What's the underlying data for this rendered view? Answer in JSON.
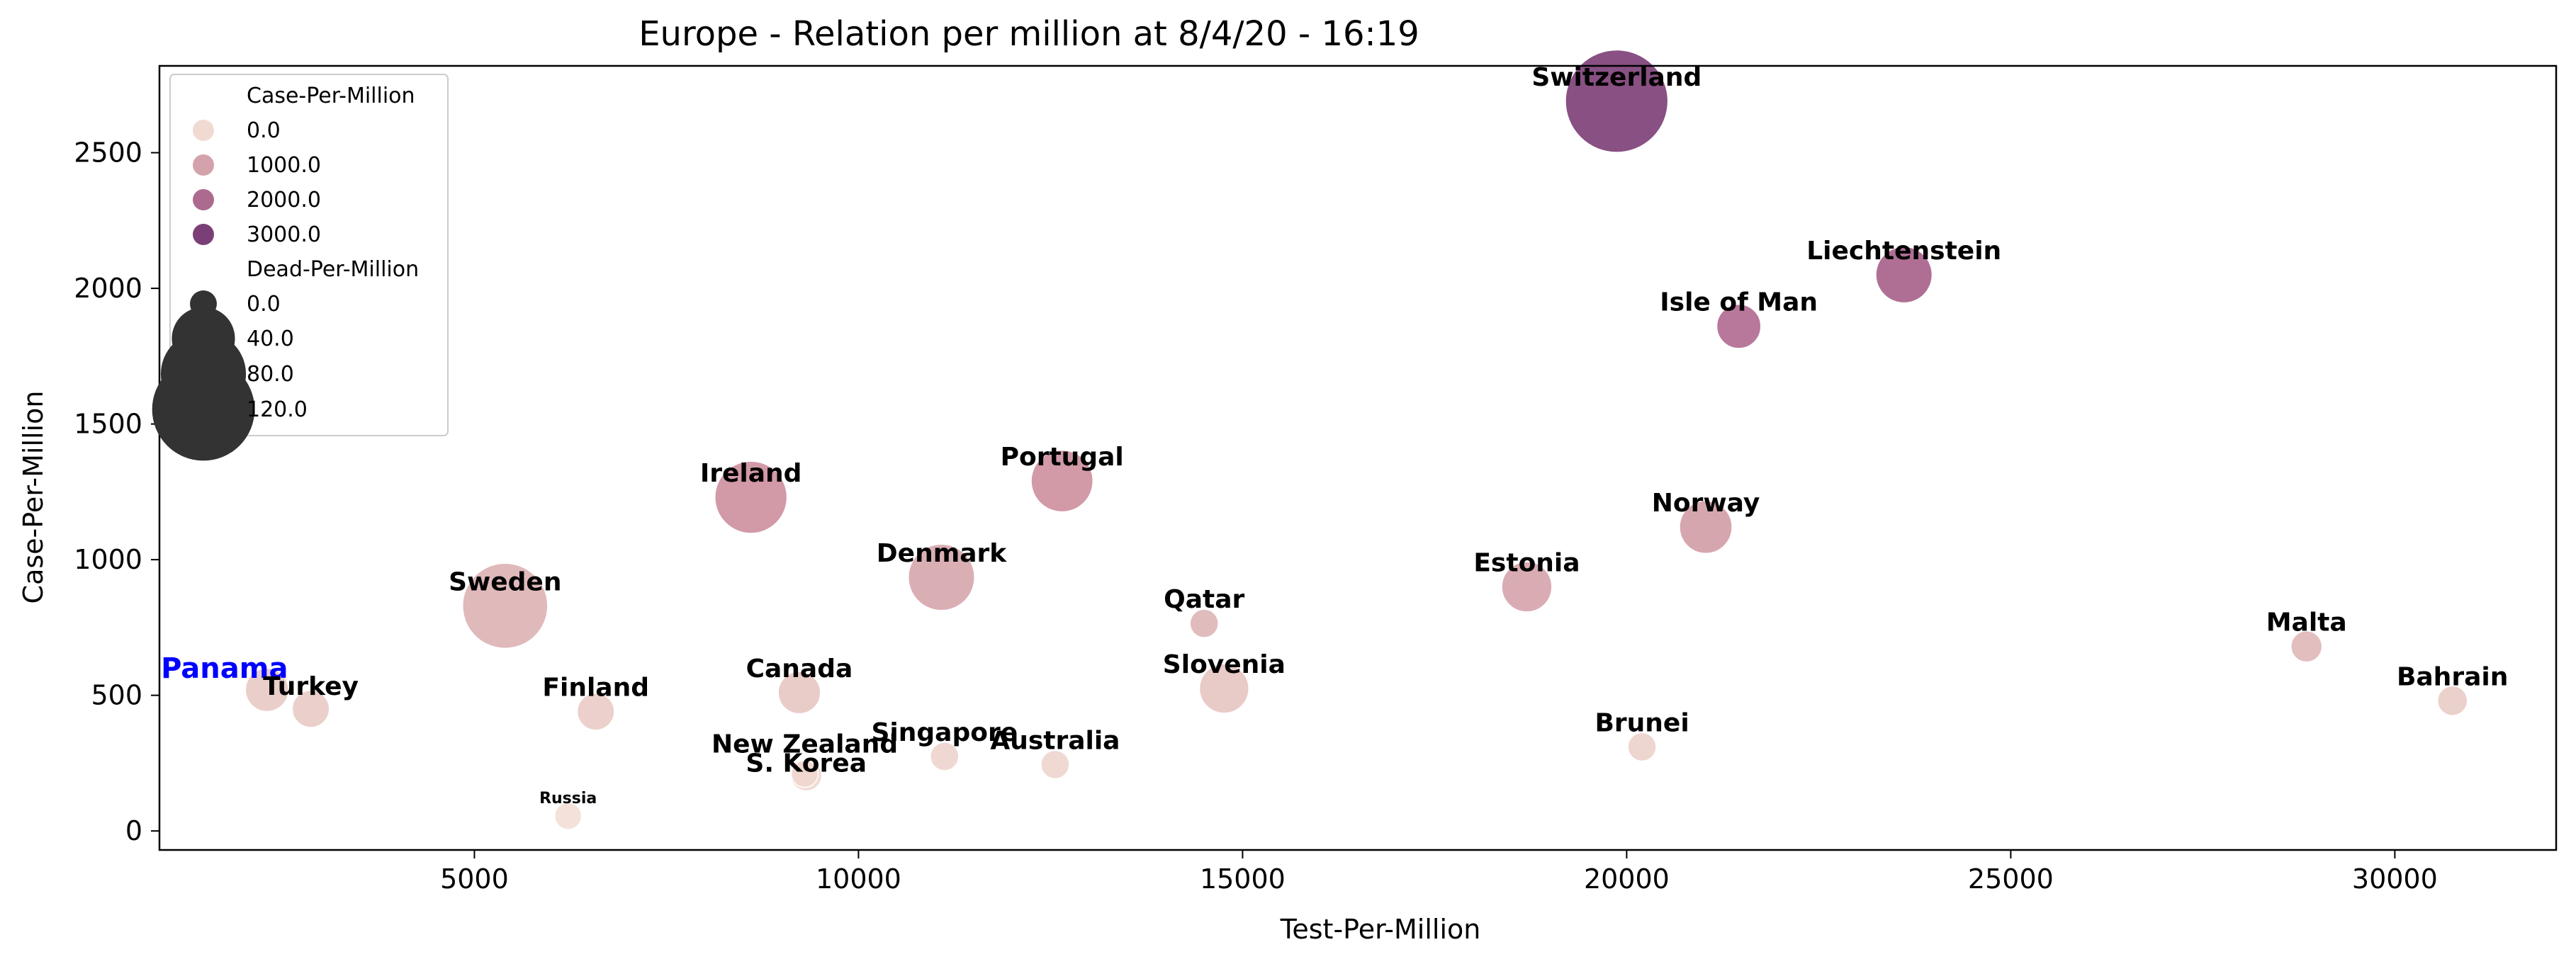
{
  "chart_data": {
    "type": "scatter",
    "title": "Europe - Relation per million at 8/4/20 - 16:19",
    "xlabel": "Test-Per-Million",
    "ylabel": "Case-Per-Million",
    "xlim": [
      900,
      32100
    ],
    "ylim": [
      -70,
      2820
    ],
    "xticks": [
      5000,
      10000,
      15000,
      20000,
      25000,
      30000
    ],
    "yticks": [
      0,
      500,
      1000,
      1500,
      2000,
      2500
    ],
    "grid": false,
    "legend": {
      "placement": "top-left",
      "hue_title": "Case-Per-Million",
      "hue_entries": [
        {
          "label": "0.0",
          "color": "#f0dad2"
        },
        {
          "label": "1000.0",
          "color": "#d4a2ab"
        },
        {
          "label": "2000.0",
          "color": "#ad6a8f"
        },
        {
          "label": "3000.0",
          "color": "#7b3f78"
        }
      ],
      "size_title": "Dead-Per-Million",
      "size_entries": [
        {
          "label": "0.0",
          "value": 0
        },
        {
          "label": "40.0",
          "value": 40
        },
        {
          "label": "80.0",
          "value": 80
        },
        {
          "label": "120.0",
          "value": 120
        }
      ]
    },
    "points": [
      {
        "name": "Switzerland",
        "x": 19870,
        "y": 2690,
        "dead": 120,
        "color": "#7e4178",
        "label_color": "#000000"
      },
      {
        "name": "Liechtenstein",
        "x": 23610,
        "y": 2050,
        "dead": 30,
        "color": "#a8638b",
        "label_color": "#000000"
      },
      {
        "name": "Isle of Man",
        "x": 21460,
        "y": 1860,
        "dead": 15,
        "color": "#b26c92",
        "label_color": "#000000"
      },
      {
        "name": "Portugal",
        "x": 12650,
        "y": 1290,
        "dead": 38,
        "color": "#ce909f",
        "label_color": "#000000"
      },
      {
        "name": "Ireland",
        "x": 8600,
        "y": 1230,
        "dead": 55,
        "color": "#ce909f",
        "label_color": "#000000"
      },
      {
        "name": "Norway",
        "x": 21030,
        "y": 1120,
        "dead": 25,
        "color": "#d29ea7",
        "label_color": "#000000"
      },
      {
        "name": "Denmark",
        "x": 11080,
        "y": 935,
        "dead": 45,
        "color": "#d7a8ae",
        "label_color": "#000000"
      },
      {
        "name": "Estonia",
        "x": 18700,
        "y": 900,
        "dead": 22,
        "color": "#d6a5ac",
        "label_color": "#000000"
      },
      {
        "name": "Sweden",
        "x": 5400,
        "y": 830,
        "dead": 80,
        "color": "#ddb3b5",
        "label_color": "#000000"
      },
      {
        "name": "Qatar",
        "x": 14500,
        "y": 765,
        "dead": 1,
        "color": "#deb6b7",
        "label_color": "#000000"
      },
      {
        "name": "Malta",
        "x": 28850,
        "y": 680,
        "dead": 3,
        "color": "#e0b9ba",
        "label_color": "#000000"
      },
      {
        "name": "Panama",
        "x": 2300,
        "y": 520,
        "dead": 14,
        "color": "#e8cac4",
        "label_color": "#0000ff"
      },
      {
        "name": "Turkey",
        "x": 2870,
        "y": 450,
        "dead": 8,
        "color": "#e8cbc5",
        "label_color": "#000000"
      },
      {
        "name": "Canada",
        "x": 9230,
        "y": 510,
        "dead": 13,
        "color": "#e7c8c3",
        "label_color": "#000000"
      },
      {
        "name": "Slovenia",
        "x": 14760,
        "y": 525,
        "dead": 21,
        "color": "#e6c6c1",
        "label_color": "#000000"
      },
      {
        "name": "Bahrain",
        "x": 30750,
        "y": 480,
        "dead": 2,
        "color": "#e9cdc7",
        "label_color": "#000000"
      },
      {
        "name": "Finland",
        "x": 6580,
        "y": 440,
        "dead": 8,
        "color": "#eaccc7",
        "label_color": "#000000"
      },
      {
        "name": "Brunei",
        "x": 20200,
        "y": 310,
        "dead": 1,
        "color": "#edd2cc",
        "label_color": "#000000"
      },
      {
        "name": "Singapore",
        "x": 11120,
        "y": 275,
        "dead": 1,
        "color": "#eed5ce",
        "label_color": "#000000"
      },
      {
        "name": "New Zealand",
        "x": 9300,
        "y": 210,
        "dead": 0,
        "color": "#f0d8d0",
        "label_color": "#000000"
      },
      {
        "name": "Australia",
        "x": 12560,
        "y": 245,
        "dead": 1,
        "color": "#efd6cf",
        "label_color": "#000000"
      },
      {
        "name": "S. Korea",
        "x": 9320,
        "y": 205,
        "dead": 3,
        "color": "#f0d8d0",
        "label_color": "#000000"
      },
      {
        "name": "Russia",
        "x": 6220,
        "y": 55,
        "dead": 0,
        "color": "#f3e0d7",
        "label_color": "#000000"
      }
    ]
  }
}
